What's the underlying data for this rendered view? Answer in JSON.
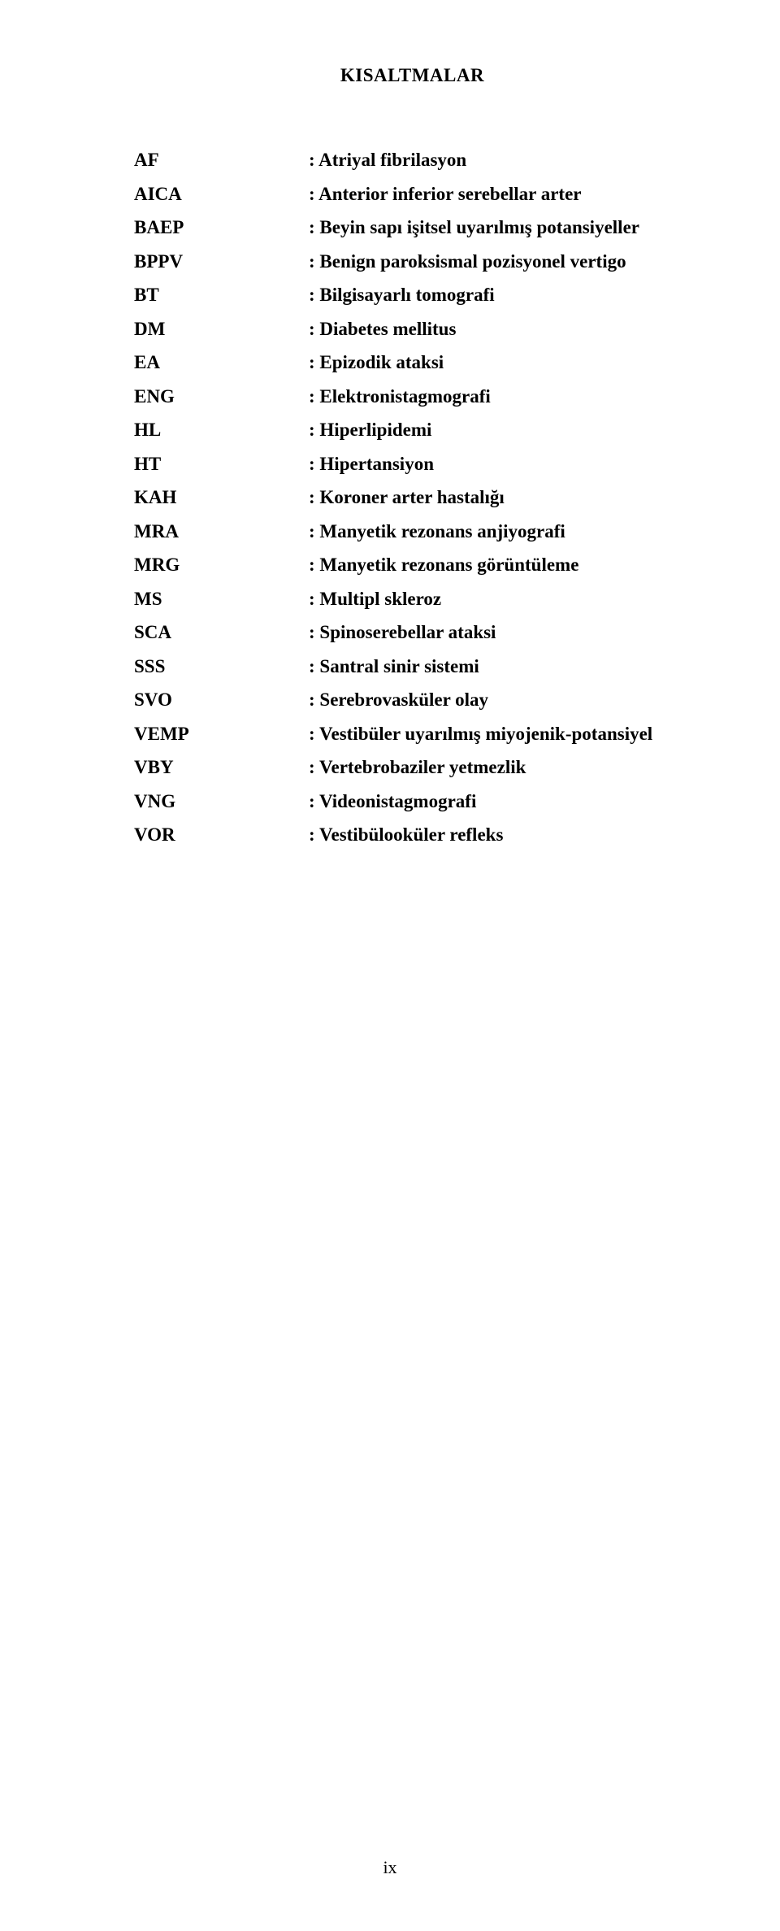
{
  "title": "KISALTMALAR",
  "abbreviations": [
    {
      "key": "AF",
      "value": ": Atriyal fibrilasyon"
    },
    {
      "key": "AICA",
      "value": ": Anterior inferior serebellar arter"
    },
    {
      "key": "BAEP",
      "value": ": Beyin sapı işitsel uyarılmış potansiyeller"
    },
    {
      "key": "BPPV",
      "value": ": Benign paroksismal pozisyonel vertigo"
    },
    {
      "key": "BT",
      "value": ": Bilgisayarlı tomografi"
    },
    {
      "key": "DM",
      "value": ": Diabetes mellitus"
    },
    {
      "key": "EA",
      "value": ": Epizodik ataksi"
    },
    {
      "key": "ENG",
      "value": ": Elektronistagmografi"
    },
    {
      "key": "HL",
      "value": ": Hiperlipidemi"
    },
    {
      "key": "HT",
      "value": ": Hipertansiyon"
    },
    {
      "key": "KAH",
      "value": ": Koroner arter hastalığı"
    },
    {
      "key": "MRA",
      "value": ": Manyetik rezonans anjiyografi"
    },
    {
      "key": "MRG",
      "value": ": Manyetik rezonans görüntüleme"
    },
    {
      "key": "MS",
      "value": ": Multipl skleroz"
    },
    {
      "key": "SCA",
      "value": ": Spinoserebellar ataksi"
    },
    {
      "key": "SSS",
      "value": ": Santral sinir sistemi"
    },
    {
      "key": "SVO",
      "value": ": Serebrovasküler olay"
    },
    {
      "key": "VEMP",
      "value": ": Vestibüler uyarılmış miyojenik-potansiyel"
    },
    {
      "key": "VBY",
      "value": ": Vertebrobaziler yetmezlik"
    },
    {
      "key": "VNG",
      "value": ": Videonistagmografi"
    },
    {
      "key": "VOR",
      "value": ": Vestibülooküler refleks"
    }
  ],
  "pageNumber": "ix",
  "styles": {
    "backgroundColor": "#ffffff",
    "textColor": "#000000",
    "titleFontSize": 23,
    "bodyFontSize": 23,
    "fontFamily": "Times New Roman"
  }
}
